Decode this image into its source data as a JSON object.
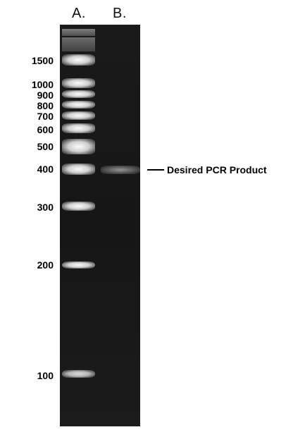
{
  "lanes": {
    "a_label": "A.",
    "b_label": "B."
  },
  "ladder_markers": [
    "1500",
    "1000",
    "900",
    "800",
    "700",
    "600",
    "500",
    "400",
    "300",
    "200",
    "100"
  ],
  "annotation": {
    "text": "Desired PCR Product"
  }
}
